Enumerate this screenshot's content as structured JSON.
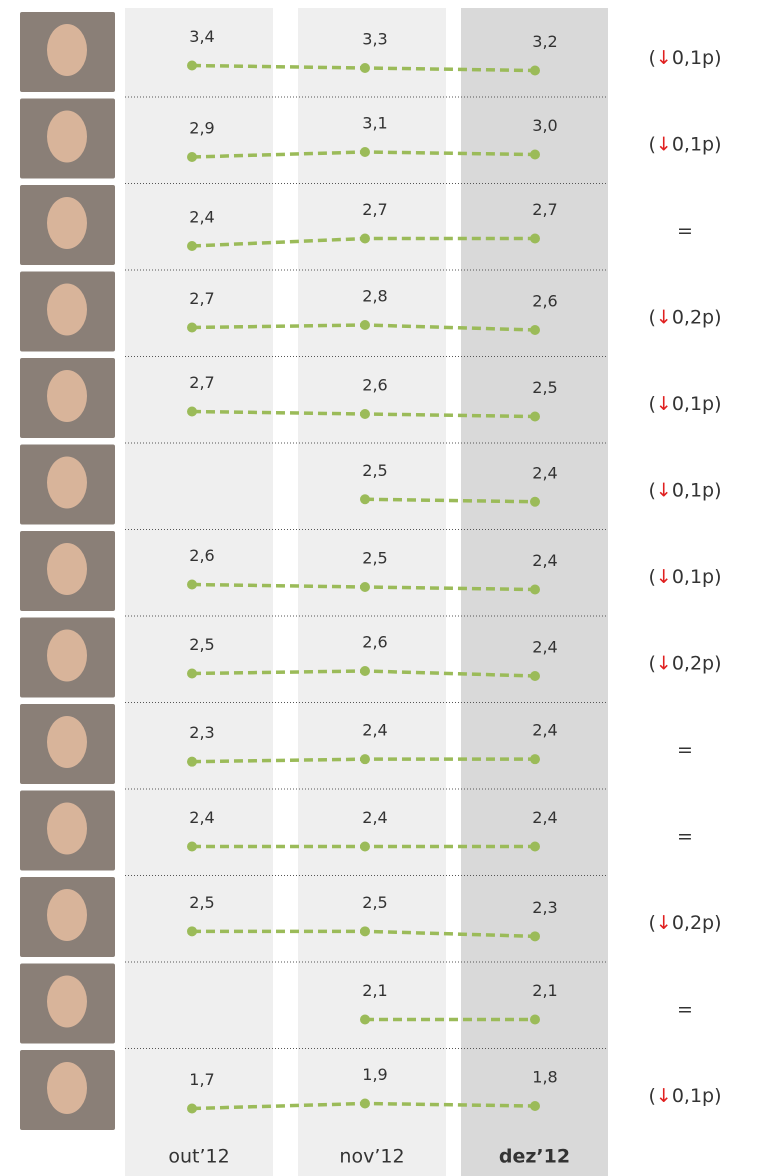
{
  "chart_data": {
    "type": "line",
    "categories": [
      "out’12",
      "nov’12",
      "dez’12"
    ],
    "highlight": 2,
    "color": "#9bbb59",
    "rows": [
      {
        "values": [
          3.4,
          3.3,
          3.2
        ],
        "value_labels": [
          "3,4",
          "3,3",
          "3,2"
        ],
        "change": "(↓0,1p)"
      },
      {
        "values": [
          2.9,
          3.1,
          3.0
        ],
        "value_labels": [
          "2,9",
          "3,1",
          "3,0"
        ],
        "change": "(↓0,1p)"
      },
      {
        "values": [
          2.4,
          2.7,
          2.7
        ],
        "value_labels": [
          "2,4",
          "2,7",
          "2,7"
        ],
        "change": "="
      },
      {
        "values": [
          2.7,
          2.8,
          2.6
        ],
        "value_labels": [
          "2,7",
          "2,8",
          "2,6"
        ],
        "change": "(↓0,2p)"
      },
      {
        "values": [
          2.7,
          2.6,
          2.5
        ],
        "value_labels": [
          "2,7",
          "2,6",
          "2,5"
        ],
        "change": "(↓0,1p)"
      },
      {
        "values": [
          null,
          2.5,
          2.4
        ],
        "value_labels": [
          null,
          "2,5",
          "2,4"
        ],
        "change": "(↓0,1p)"
      },
      {
        "values": [
          2.6,
          2.5,
          2.4
        ],
        "value_labels": [
          "2,6",
          "2,5",
          "2,4"
        ],
        "change": "(↓0,1p)"
      },
      {
        "values": [
          2.5,
          2.6,
          2.4
        ],
        "value_labels": [
          "2,5",
          "2,6",
          "2,4"
        ],
        "change": "(↓0,2p)"
      },
      {
        "values": [
          2.3,
          2.4,
          2.4
        ],
        "value_labels": [
          "2,3",
          "2,4",
          "2,4"
        ],
        "change": "="
      },
      {
        "values": [
          2.4,
          2.4,
          2.4
        ],
        "value_labels": [
          "2,4",
          "2,4",
          "2,4"
        ],
        "change": "="
      },
      {
        "values": [
          2.5,
          2.5,
          2.3
        ],
        "value_labels": [
          "2,5",
          "2,5",
          "2,3"
        ],
        "change": "(↓0,2p)"
      },
      {
        "values": [
          null,
          2.1,
          2.1
        ],
        "value_labels": [
          null,
          "2,1",
          "2,1"
        ],
        "change": "="
      },
      {
        "values": [
          1.7,
          1.9,
          1.8
        ],
        "value_labels": [
          "1,7",
          "1,9",
          "1,8"
        ],
        "change": "(↓0,1p)"
      }
    ]
  }
}
